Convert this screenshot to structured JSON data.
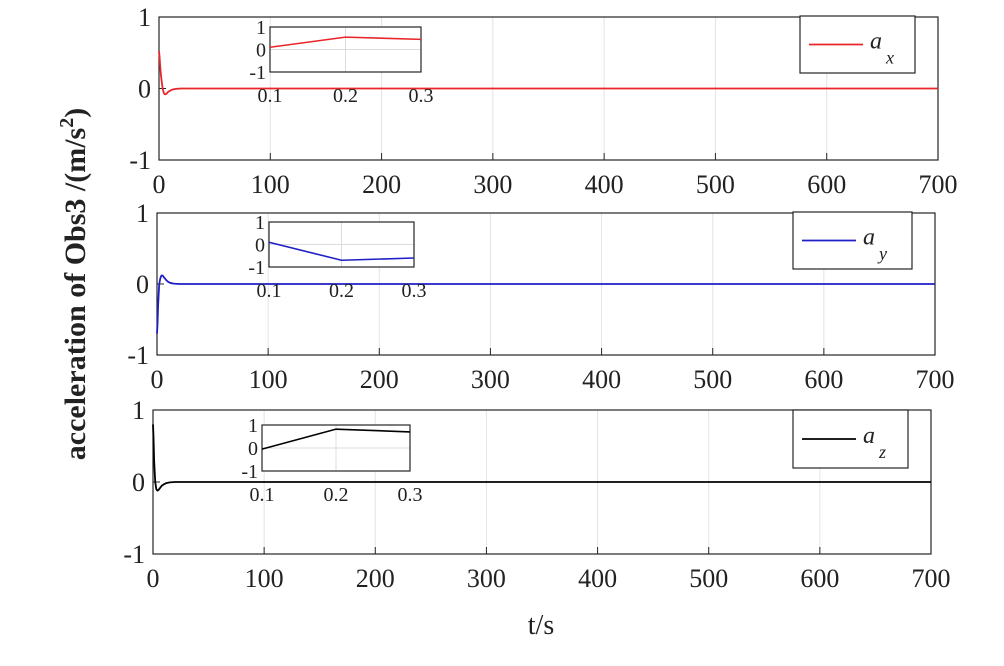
{
  "figure": {
    "ylabel": "acceleration of Obs3 /(m/s",
    "ylabel_sup": "2",
    "ylabel_close": ")",
    "xlabel": "t/s"
  },
  "chart_data": [
    {
      "type": "line",
      "xlim": [
        0,
        700
      ],
      "ylim": [
        -1,
        1
      ],
      "xticks": [
        0,
        100,
        200,
        300,
        400,
        500,
        600,
        700
      ],
      "yticks": [
        1,
        0,
        -1
      ],
      "ytick_labels": [
        "1",
        "0",
        "-1"
      ],
      "grid": true,
      "legend_position": "top-right",
      "legend": {
        "main": "a",
        "sub": "x"
      },
      "color": "#e8262a",
      "series": [
        {
          "x": [
            0,
            0.5,
            1,
            2,
            3,
            4,
            5,
            6,
            7,
            8,
            9,
            10,
            12,
            15,
            20,
            30,
            50,
            100,
            700
          ],
          "y": [
            0.52,
            0.45,
            0.32,
            0.15,
            0.03,
            -0.05,
            -0.08,
            -0.08,
            -0.07,
            -0.05,
            -0.04,
            -0.03,
            -0.015,
            -0.005,
            0,
            0,
            0,
            0,
            0
          ]
        }
      ],
      "inset": {
        "xlim": [
          0.1,
          0.3
        ],
        "ylim": [
          -1,
          1
        ],
        "xticks": [
          0.1,
          0.2,
          0.3
        ],
        "xtick_labels": [
          "0.1",
          "0.2",
          "0.3"
        ],
        "yticks": [
          1,
          0,
          -1
        ],
        "ytick_labels": [
          "1",
          "0",
          "-1"
        ],
        "x": [
          0.1,
          0.2,
          0.3
        ],
        "y": [
          0.1,
          0.55,
          0.45
        ]
      }
    },
    {
      "type": "line",
      "xlim": [
        0,
        700
      ],
      "ylim": [
        -1,
        1
      ],
      "xticks": [
        0,
        100,
        200,
        300,
        400,
        500,
        600,
        700
      ],
      "yticks": [
        1,
        0,
        -1
      ],
      "ytick_labels": [
        "1",
        "0",
        "-1"
      ],
      "grid": true,
      "legend_position": "top-right",
      "legend": {
        "main": "a",
        "sub": "y"
      },
      "color": "#1f1fc8",
      "series": [
        {
          "x": [
            0,
            0.5,
            1,
            2,
            3,
            4,
            5,
            6,
            7,
            8,
            10,
            12,
            15,
            20,
            30,
            50,
            100,
            700
          ],
          "y": [
            -0.7,
            -0.55,
            -0.3,
            0,
            0.08,
            0.12,
            0.12,
            0.1,
            0.08,
            0.06,
            0.03,
            0.015,
            0.005,
            0,
            0,
            0,
            0,
            0
          ]
        }
      ],
      "inset": {
        "xlim": [
          0.1,
          0.3
        ],
        "ylim": [
          -1,
          1
        ],
        "xticks": [
          0.1,
          0.2,
          0.3
        ],
        "xtick_labels": [
          "0.1",
          "0.2",
          "0.3"
        ],
        "yticks": [
          1,
          0,
          -1
        ],
        "ytick_labels": [
          "1",
          "0",
          "-1"
        ],
        "x": [
          0.1,
          0.2,
          0.3
        ],
        "y": [
          0.1,
          -0.7,
          -0.6
        ]
      }
    },
    {
      "type": "line",
      "xlim": [
        0,
        700
      ],
      "ylim": [
        -1,
        1
      ],
      "xticks": [
        0,
        100,
        200,
        300,
        400,
        500,
        600,
        700
      ],
      "yticks": [
        1,
        0,
        -1
      ],
      "ytick_labels": [
        "1",
        "0",
        "-1"
      ],
      "grid": true,
      "legend_position": "top-right",
      "legend": {
        "main": "a",
        "sub": "z"
      },
      "color": "#000000",
      "series": [
        {
          "x": [
            0,
            0.5,
            1,
            2,
            3,
            4,
            5,
            6,
            7,
            8,
            10,
            12,
            15,
            20,
            30,
            50,
            100,
            700
          ],
          "y": [
            0.8,
            0.6,
            0.3,
            0,
            -0.1,
            -0.12,
            -0.11,
            -0.09,
            -0.07,
            -0.05,
            -0.03,
            -0.015,
            -0.005,
            0,
            0,
            0,
            0,
            0
          ]
        }
      ],
      "inset": {
        "xlim": [
          0.1,
          0.3
        ],
        "ylim": [
          -1,
          1
        ],
        "xticks": [
          0.1,
          0.2,
          0.3
        ],
        "xtick_labels": [
          "0.1",
          "0.2",
          "0.3"
        ],
        "yticks": [
          1,
          0,
          -1
        ],
        "ytick_labels": [
          "1",
          "0",
          "-1"
        ],
        "x": [
          0.1,
          0.2,
          0.3
        ],
        "y": [
          -0.05,
          0.82,
          0.7
        ]
      }
    }
  ]
}
